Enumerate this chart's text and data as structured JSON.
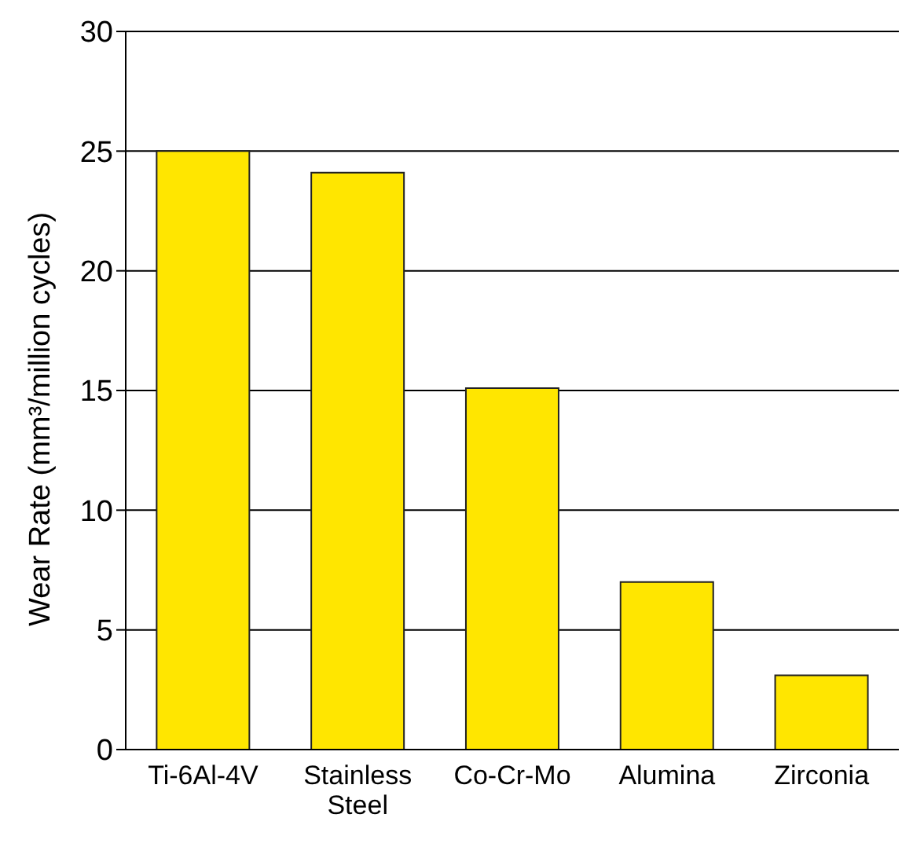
{
  "chart_data": {
    "type": "bar",
    "ylabel": "Wear Rate (mm³/million cycles)",
    "categories": [
      "Ti-6Al-4V",
      "Stainless Steel",
      "Co-Cr-Mo",
      "Alumina",
      "Zirconia"
    ],
    "values": [
      25,
      24.1,
      15.1,
      7,
      3.1
    ],
    "color": "#ffe600",
    "ylim": [
      0,
      30
    ],
    "yticks": [
      0,
      5,
      10,
      15,
      20,
      25,
      30
    ],
    "grid": "y"
  }
}
